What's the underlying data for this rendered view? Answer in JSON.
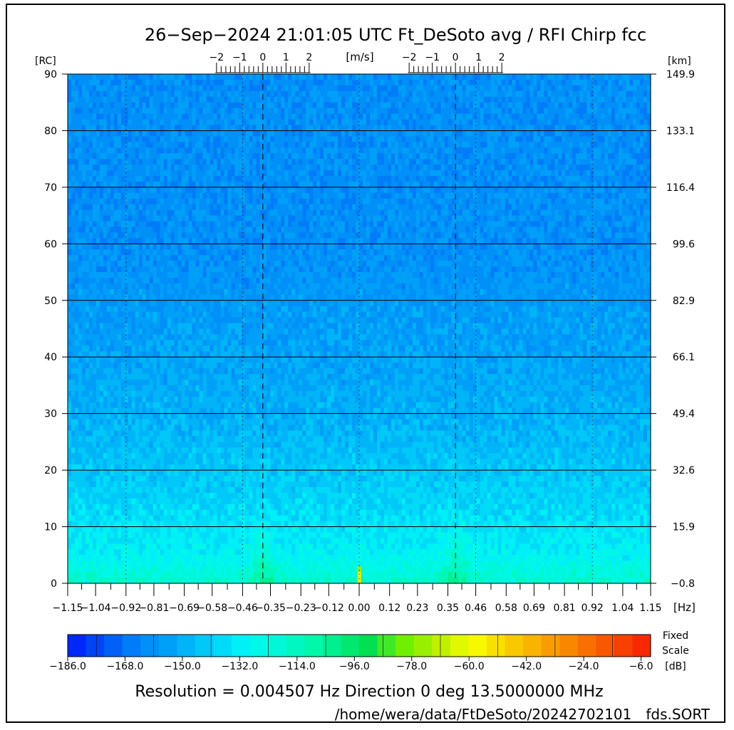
{
  "header": {
    "title": "26−Sep−2024 21:01:05 UTC   Ft_DeSoto    avg / RFI  Chirp fcc"
  },
  "labels": {
    "left_unit": "[RC]",
    "right_unit": "[km]",
    "x_unit": "[Hz]",
    "velocity_unit": "[m/s]",
    "colorbar_title_1": "Fixed",
    "colorbar_title_2": "Scale",
    "colorbar_unit": "[dB]"
  },
  "footer": {
    "resolution": "Resolution = 0.004507 Hz  Direction   0 deg   13.5000000 MHz",
    "path": "/home/wera/data/FtDeSoto/20242702101__fds.SORT"
  },
  "chart_data": {
    "type": "heatmap",
    "xlabel": "[Hz]",
    "ylabel": "[RC]",
    "x_range": [
      -1.15,
      1.15
    ],
    "y_range": [
      0,
      90
    ],
    "x_ticks": [
      "−1.15",
      "−1.04",
      "−0.92",
      "−0.81",
      "−0.69",
      "−0.58",
      "−0.46",
      "−0.35",
      "−0.23",
      "−0.12",
      "0.00",
      "0.12",
      "0.23",
      "0.35",
      "0.46",
      "0.58",
      "0.69",
      "0.81",
      "0.92",
      "1.04",
      "1.15"
    ],
    "y_ticks_left": [
      "0",
      "10",
      "20",
      "30",
      "40",
      "50",
      "60",
      "70",
      "80",
      "90"
    ],
    "y_ticks_right": [
      "−0.8",
      "15.9",
      "32.6",
      "49.4",
      "66.1",
      "82.9",
      "99.6",
      "116.4",
      "133.1",
      "149.9"
    ],
    "velocity_ticks": [
      "−2",
      "−1",
      "0",
      "1",
      "2"
    ],
    "velocity_axis_centers_hz": [
      -0.38,
      0.38
    ],
    "bragg_lines_hz": [
      -0.38,
      0.38
    ],
    "grid": true,
    "colorbar": {
      "range_db": [
        -186,
        -3
      ],
      "ticks": [
        "−186.0",
        "−168.0",
        "−150.0",
        "−132.0",
        "−114.0",
        "−96.0",
        "−78.0",
        "−60.0",
        "−42.0",
        "−24.0",
        "−6.0"
      ],
      "colors": [
        "#0028f8",
        "#0044f8",
        "#0060f8",
        "#007cf8",
        "#0090f8",
        "#00a0f8",
        "#00b4f8",
        "#00c8f8",
        "#00dcf8",
        "#00f0f8",
        "#00f8e8",
        "#00f8d8",
        "#00f8c0",
        "#00f8a8",
        "#00f090",
        "#00e870",
        "#00e050",
        "#40e828",
        "#70f000",
        "#98f000",
        "#c0f000",
        "#e0f800",
        "#f8f800",
        "#f8e000",
        "#f8c800",
        "#f8b400",
        "#f89c00",
        "#f88800",
        "#f87000",
        "#f85800",
        "#f84000",
        "#f82800"
      ]
    },
    "field_levels_db": {
      "ranges_90_to_60": -160,
      "ranges_60_to_30": -150,
      "ranges_30_to_15": -140,
      "ranges_15_to_5": -130,
      "ranges_5_to_0": -118,
      "bragg_peak_db": -102,
      "dc_peak_db": -72
    }
  }
}
